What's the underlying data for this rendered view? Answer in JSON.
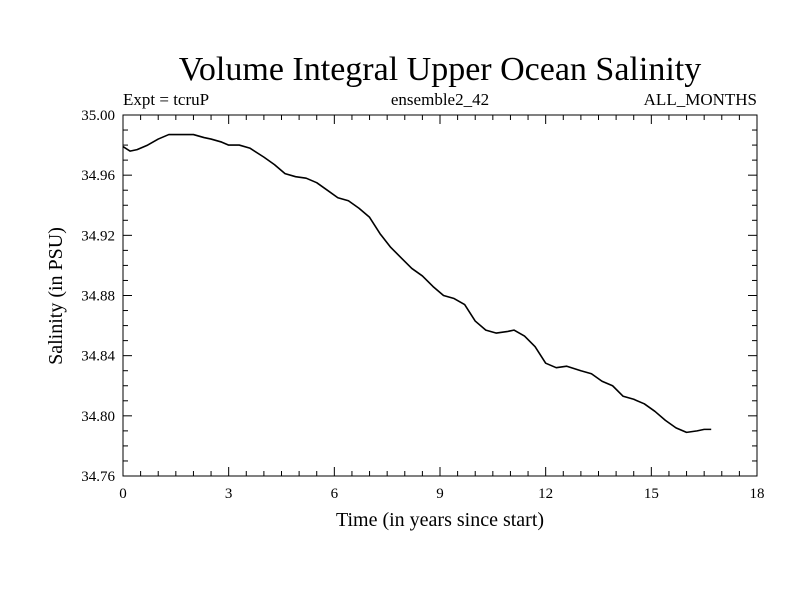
{
  "chart_data": {
    "type": "line",
    "title": "Volume Integral Upper Ocean Salinity",
    "subtitle_left": "Expt = tcruP",
    "subtitle_center": "ensemble2_42",
    "subtitle_right": "ALL_MONTHS",
    "xlabel": "Time (in years since start)",
    "ylabel": "Salinity (in PSU)",
    "xlim": [
      0,
      18
    ],
    "ylim": [
      34.76,
      35.0
    ],
    "xticks": [
      0,
      3,
      6,
      9,
      12,
      15,
      18
    ],
    "xtick_labels": [
      "0",
      "3",
      "6",
      "9",
      "12",
      "15",
      "18"
    ],
    "yticks": [
      34.76,
      34.8,
      34.84,
      34.88,
      34.92,
      34.96,
      35.0
    ],
    "ytick_labels": [
      "34.76",
      "34.80",
      "34.84",
      "34.88",
      "34.92",
      "34.96",
      "35.00"
    ],
    "grid": false,
    "series": [
      {
        "name": "salinity",
        "x": [
          0.0,
          0.2,
          0.4,
          0.7,
          1.0,
          1.3,
          1.6,
          2.0,
          2.3,
          2.5,
          2.8,
          3.0,
          3.3,
          3.6,
          4.0,
          4.3,
          4.6,
          4.9,
          5.2,
          5.5,
          5.8,
          6.1,
          6.4,
          6.7,
          7.0,
          7.3,
          7.6,
          7.9,
          8.2,
          8.5,
          8.8,
          9.1,
          9.4,
          9.7,
          10.0,
          10.3,
          10.6,
          10.9,
          11.1,
          11.4,
          11.7,
          12.0,
          12.3,
          12.6,
          13.0,
          13.3,
          13.6,
          13.9,
          14.2,
          14.5,
          14.8,
          15.1,
          15.4,
          15.7,
          16.0,
          16.3,
          16.5,
          16.7
        ],
        "y": [
          34.979,
          34.976,
          34.977,
          34.98,
          34.984,
          34.987,
          34.987,
          34.987,
          34.985,
          34.984,
          34.982,
          34.98,
          34.98,
          34.978,
          34.972,
          34.967,
          34.961,
          34.959,
          34.958,
          34.955,
          34.95,
          34.945,
          34.943,
          34.938,
          34.932,
          34.921,
          34.912,
          34.905,
          34.898,
          34.893,
          34.886,
          34.88,
          34.878,
          34.874,
          34.863,
          34.857,
          34.855,
          34.856,
          34.857,
          34.853,
          34.846,
          34.835,
          34.832,
          34.833,
          34.83,
          34.828,
          34.823,
          34.82,
          34.813,
          34.811,
          34.808,
          34.803,
          34.797,
          34.792,
          34.789,
          34.79,
          34.791,
          34.791
        ]
      }
    ]
  }
}
